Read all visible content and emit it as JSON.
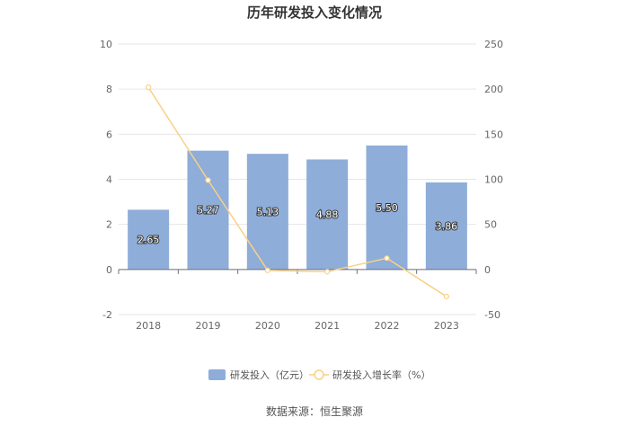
{
  "chart_data": {
    "type": "bar",
    "title": "历年研发投入变化情况",
    "categories": [
      "2018",
      "2019",
      "2020",
      "2021",
      "2022",
      "2023"
    ],
    "series": [
      {
        "name": "研发投入（亿元）",
        "type": "bar",
        "axis": "left",
        "color": "#8eadd9",
        "values": [
          2.65,
          5.27,
          5.13,
          4.88,
          5.5,
          3.86
        ]
      },
      {
        "name": "研发投入增长率（%）",
        "type": "line",
        "axis": "right",
        "color": "#f9d185",
        "values": [
          202,
          99,
          -1,
          -2.5,
          12.5,
          -30
        ]
      }
    ],
    "y_left": {
      "min": -2,
      "max": 10,
      "ticks": [
        "-2",
        "0",
        "2",
        "4",
        "6",
        "8",
        "10"
      ]
    },
    "y_right": {
      "min": -50,
      "max": 250,
      "ticks": [
        "-50",
        "0",
        "50",
        "100",
        "150",
        "200",
        "250"
      ]
    },
    "bar_labels": [
      "2.65",
      "5.27",
      "5.13",
      "4.88",
      "5.50",
      "3.86"
    ],
    "grid": true,
    "legend_position": "bottom"
  },
  "footer": {
    "source": "数据来源：恒生聚源"
  }
}
